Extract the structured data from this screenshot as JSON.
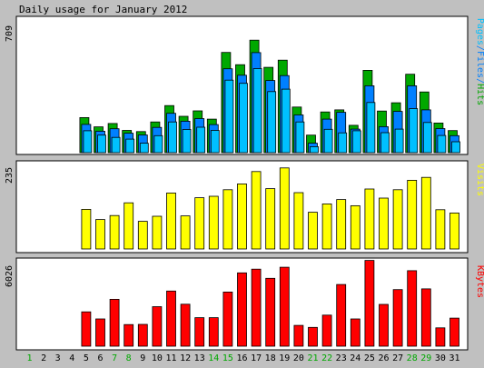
{
  "chart_data": [
    {
      "type": "bar",
      "title": "Daily usage for January 2012",
      "ymax_label": "709",
      "side_label": [
        "Pages",
        "/",
        "Files",
        "/",
        "Hits"
      ],
      "categories": [
        "1",
        "2",
        "3",
        "4",
        "5",
        "6",
        "7",
        "8",
        "9",
        "10",
        "11",
        "12",
        "13",
        "14",
        "15",
        "16",
        "17",
        "18",
        "19",
        "20",
        "21",
        "22",
        "23",
        "24",
        "25",
        "26",
        "27",
        "28",
        "29",
        "30",
        "31"
      ],
      "weekend_days": [
        "1",
        "7",
        "8",
        "14",
        "15",
        "21",
        "22",
        "28",
        "29"
      ],
      "ylim": [
        0,
        709
      ],
      "series": [
        {
          "name": "Hits",
          "color": "#00a800",
          "values": [
            0,
            0,
            0,
            0,
            186,
            137,
            155,
            118,
            112,
            163,
            250,
            193,
            222,
            178,
            532,
            467,
            597,
            453,
            491,
            242,
            93,
            216,
            227,
            145,
            437,
            221,
            265,
            416,
            322,
            157,
            117
          ]
        },
        {
          "name": "Files",
          "color": "#0080ff",
          "values": [
            0,
            0,
            0,
            0,
            150,
            114,
            127,
            103,
            94,
            134,
            209,
            167,
            181,
            149,
            445,
            411,
            531,
            383,
            409,
            200,
            50,
            178,
            214,
            125,
            355,
            138,
            219,
            355,
            227,
            128,
            90
          ]
        },
        {
          "name": "Pages",
          "color": "#00c0ff",
          "values": [
            0,
            0,
            0,
            0,
            116,
            93,
            81,
            72,
            50,
            90,
            163,
            123,
            135,
            118,
            385,
            368,
            446,
            324,
            337,
            163,
            32,
            124,
            105,
            116,
            266,
            106,
            125,
            234,
            160,
            91,
            58
          ]
        }
      ]
    },
    {
      "type": "bar",
      "ymax_label": "235",
      "side_label": "Visits",
      "ylim": [
        0,
        235
      ],
      "series": [
        {
          "name": "Visits",
          "color": "#ffff00",
          "values": [
            0,
            0,
            0,
            0,
            109,
            81,
            92,
            127,
            76,
            90,
            154,
            91,
            141,
            145,
            163,
            179,
            213,
            166,
            223,
            155,
            101,
            124,
            136,
            119,
            165,
            140,
            163,
            189,
            197,
            108,
            99
          ]
        }
      ]
    },
    {
      "type": "bar",
      "ymax_label": "6026",
      "side_label": "KBytes",
      "ylim": [
        0,
        6026
      ],
      "series": [
        {
          "name": "KBytes",
          "color": "#ff0000",
          "values": [
            0,
            0,
            0,
            0,
            2400,
            1900,
            3270,
            1510,
            1520,
            2760,
            3850,
            2930,
            1990,
            1990,
            3780,
            5120,
            5380,
            4740,
            5510,
            1450,
            1310,
            2170,
            4310,
            1900,
            5990,
            2920,
            3950,
            5270,
            4000,
            1280,
            1960
          ]
        }
      ]
    }
  ],
  "colors": {
    "background": "#c0c0c0",
    "panel_bg": "#ffffff",
    "title_color": "#000000",
    "weekday_label": "#000000",
    "weekend_label": "#00a800"
  }
}
